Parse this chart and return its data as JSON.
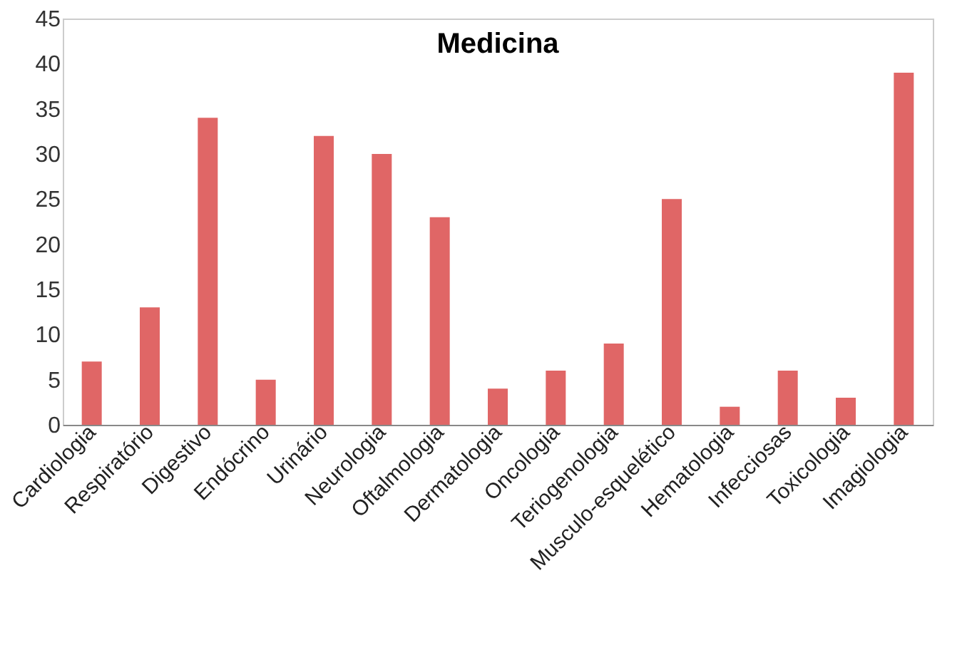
{
  "chart_data": {
    "type": "bar",
    "title": "Medicina",
    "categories": [
      "Cardiologia",
      "Respiratório",
      "Digestivo",
      "Endócrino",
      "Urinário",
      "Neurologia",
      "Oftalmologia",
      "Dermatologia",
      "Oncologia",
      "Teriogenologia",
      "Musculo-esquelético",
      "Hematologia",
      "Infecciosas",
      "Toxicologia",
      "Imagiologia"
    ],
    "values": [
      7,
      13,
      34,
      5,
      32,
      30,
      23,
      4,
      6,
      9,
      25,
      2,
      6,
      3,
      39
    ],
    "color": "#e06666",
    "ylim": [
      0,
      45
    ],
    "yticks": [
      0,
      5,
      10,
      15,
      20,
      25,
      30,
      35,
      40,
      45
    ],
    "grid": false
  }
}
